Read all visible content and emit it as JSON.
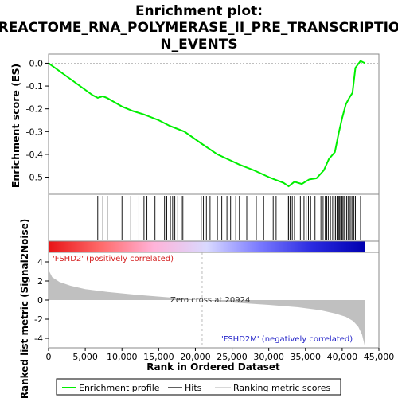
{
  "chart_data": {
    "type": "line",
    "title_line1": "Enrichment plot:",
    "title_line2": "REACTOME_RNA_POLYMERASE_II_PRE_TRANSCRIPTIO",
    "title_line3": "N_EVENTS",
    "top_panel": {
      "ylabel": "Enrichment score (ES)",
      "ylim": [
        -0.575,
        0.04
      ],
      "yticks": [
        0.0,
        -0.1,
        -0.2,
        -0.3,
        -0.4,
        -0.5
      ],
      "ytick_labels": [
        "0.0",
        "-0.1",
        "-0.2",
        "-0.3",
        "-0.4",
        "-0.5"
      ],
      "series": [
        {
          "name": "Enrichment profile",
          "color": "#00ee00",
          "x": [
            0,
            3000,
            6000,
            6700,
            7400,
            8000,
            10000,
            11500,
            13000,
            15000,
            16500,
            18500,
            20924,
            23000,
            25000,
            26000,
            28000,
            30000,
            30800,
            32000,
            32700,
            33500,
            34500,
            35500,
            36500,
            37500,
            38200,
            39000,
            39500,
            40000,
            40500,
            41000,
            41400,
            41800,
            42500,
            43100
          ],
          "y": [
            0.0,
            -0.07,
            -0.14,
            -0.152,
            -0.145,
            -0.153,
            -0.19,
            -0.21,
            -0.225,
            -0.25,
            -0.275,
            -0.3,
            -0.355,
            -0.4,
            -0.43,
            -0.445,
            -0.47,
            -0.5,
            -0.51,
            -0.525,
            -0.54,
            -0.52,
            -0.53,
            -0.51,
            -0.505,
            -0.47,
            -0.42,
            -0.39,
            -0.31,
            -0.24,
            -0.18,
            -0.15,
            -0.13,
            -0.02,
            0.01,
            0.0
          ]
        }
      ]
    },
    "hits": {
      "name": "Hits",
      "positions": [
        6700,
        7400,
        8000,
        10000,
        11200,
        12300,
        13000,
        13400,
        14500,
        15800,
        16100,
        16600,
        16900,
        17200,
        17600,
        18100,
        18300,
        18600,
        20800,
        21100,
        21500,
        22000,
        23000,
        23600,
        24300,
        24800,
        25500,
        26000,
        27000,
        28300,
        29300,
        30600,
        31000,
        32500,
        32700,
        32900,
        33200,
        33500,
        34300,
        34800,
        35100,
        35400,
        35700,
        36300,
        36700,
        37100,
        37400,
        37700,
        37900,
        38100,
        38400,
        38700,
        38900,
        39100,
        39300,
        39500,
        39650,
        39800,
        39950,
        40100,
        40250,
        40400,
        40600,
        40800,
        41000,
        41200,
        41400,
        41600,
        41800,
        42500
      ]
    },
    "ranked_panel": {
      "ylabel": "Ranked list metric (Signal2Noise)",
      "ylim": [
        -5.0,
        5.0
      ],
      "yticks": [
        4,
        2,
        0,
        -2,
        -4
      ],
      "ytick_labels": [
        "4",
        "2",
        "0",
        "-2",
        "-4"
      ],
      "metric_x": [
        0,
        100,
        500,
        1500,
        3000,
        5000,
        8000,
        12000,
        16000,
        20924,
        25000,
        30000,
        34000,
        37000,
        39000,
        40500,
        41500,
        42200,
        42700,
        43100
      ],
      "metric_y": [
        3.6,
        3.0,
        2.4,
        1.9,
        1.5,
        1.15,
        0.85,
        0.55,
        0.3,
        0.0,
        -0.25,
        -0.5,
        -0.75,
        -1.05,
        -1.4,
        -1.75,
        -2.2,
        -2.8,
        -3.6,
        -4.9
      ],
      "positive_label": "'FSHD2' (positively correlated)",
      "negative_label": "'FSHD2M' (negatively correlated)",
      "zero_cross_label": "Zero cross at 20924",
      "zero_cross": 20924
    },
    "xlabel": "Rank in Ordered Dataset",
    "xlim": [
      0,
      45000
    ],
    "xticks": [
      0,
      5000,
      10000,
      15000,
      20000,
      25000,
      30000,
      35000,
      40000,
      45000
    ],
    "xtick_labels": [
      "0",
      "5,000",
      "10,000",
      "15,000",
      "20,000",
      "25,000",
      "30,000",
      "35,000",
      "40,000",
      "45,000"
    ],
    "gradient_bar": {
      "zero_rank": 20924,
      "max_rank": 43100,
      "colors": [
        "#e81416",
        "#ff6b6b",
        "#ffb3d9",
        "#d9d9ff",
        "#7a7aff",
        "#2a2ae0",
        "#0000b0"
      ]
    },
    "legend": {
      "placement": "bottom",
      "items": [
        {
          "label": "Enrichment profile",
          "color": "#00ee00"
        },
        {
          "label": "Hits",
          "color": "#000000"
        },
        {
          "label": "Ranking metric scores",
          "color": "#c0c0c0"
        }
      ]
    }
  }
}
